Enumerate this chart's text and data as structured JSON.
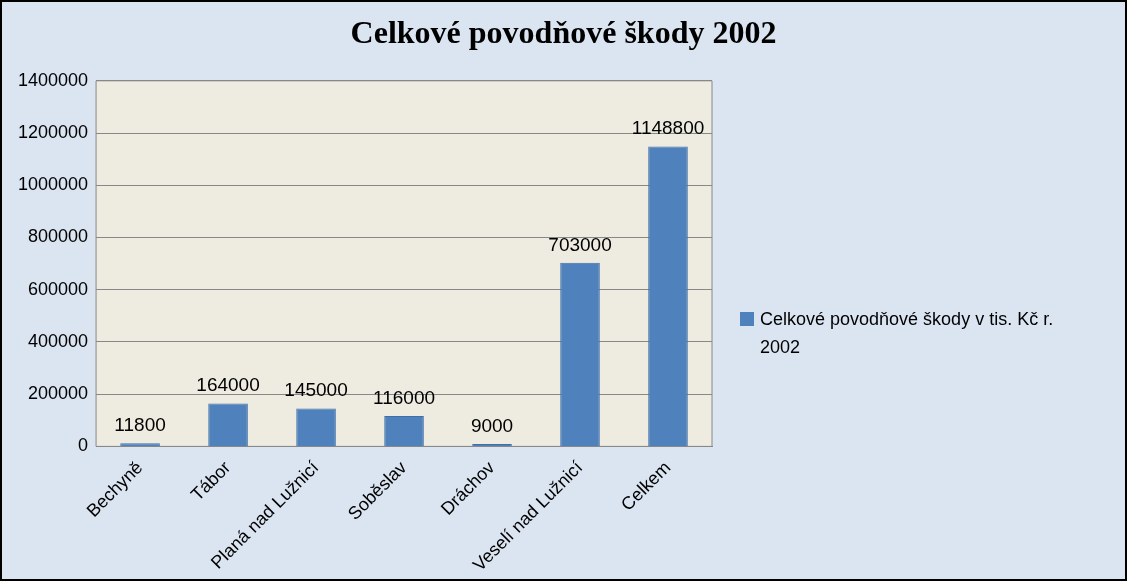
{
  "chart_data": {
    "type": "bar",
    "title": "Celkové povodňové škody 2002",
    "categories": [
      "Bechyně",
      "Tábor",
      "Planá nad Lužnicí",
      "Soběslav",
      "Dráchov",
      "Veselí nad Lužnicí",
      "Celkem"
    ],
    "series": [
      {
        "name": "Celkové povodňové škody v tis. Kč r. 2002",
        "color": "#4f81bd",
        "values": [
          11800,
          164000,
          145000,
          116000,
          9000,
          703000,
          1148800
        ]
      }
    ],
    "ylim": [
      0,
      1400000
    ],
    "yticks": [
      0,
      200000,
      400000,
      600000,
      800000,
      1000000,
      1200000,
      1400000
    ],
    "grid": "y",
    "legend": "right",
    "data_labels": true
  }
}
